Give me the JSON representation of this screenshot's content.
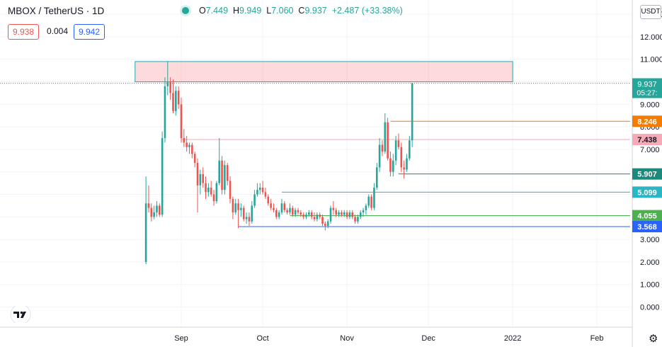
{
  "header": {
    "symbol": "MBOX / TetherUS · 1D",
    "open_label": "O",
    "open": "7.449",
    "high_label": "H",
    "high": "9.949",
    "low_label": "L",
    "low": "7.060",
    "close_label": "C",
    "close": "9.937",
    "change": "+2.487 (+33.38%)",
    "bid": "9.938",
    "spread": "0.004",
    "ask": "9.942",
    "currency": "USDT"
  },
  "colors": {
    "up": "#26a69a",
    "down": "#ef5350",
    "grid": "#f0f3fa"
  },
  "chart_data": {
    "type": "candlestick",
    "y_axis": {
      "ticks": [
        "0.000",
        "1.000",
        "2.000",
        "3.000",
        "4.000",
        "5.000",
        "6.000",
        "7.000",
        "8.000",
        "9.000",
        "10.000",
        "11.000",
        "12.000",
        "13.000"
      ],
      "ylim": [
        -0.4,
        13.4
      ]
    },
    "x_axis": {
      "ticks": [
        "Sep",
        "Oct",
        "Nov",
        "Dec",
        "2022",
        "Feb"
      ]
    },
    "last_price": {
      "value": 9.937,
      "label": "9.937",
      "countdown": "05:27:"
    },
    "levels": [
      {
        "value": 8.246,
        "label": "8.246",
        "color": "#f57c00",
        "from": "2021-11-17"
      },
      {
        "value": 7.438,
        "label": "7.438",
        "color": "#f7a9b5",
        "from": "2021-09-01"
      },
      {
        "value": 5.907,
        "label": "5.907",
        "color": "#1b8a7c",
        "from": "2021-11-20"
      },
      {
        "value": 5.099,
        "label": "5.099",
        "color": "#2bb6c6",
        "from": "2021-10-08"
      },
      {
        "value": 4.055,
        "label": "4.055",
        "color": "#4caf50",
        "from": "2021-10-11"
      },
      {
        "value": 3.568,
        "label": "3.568",
        "color": "#2962ff",
        "from": "2021-09-22"
      }
    ],
    "zone": {
      "from": "2021-08-15",
      "to": "2022-01-01",
      "low": 10.0,
      "high": 10.9
    },
    "candles": [
      [
        "2021-08-19",
        2.0,
        5.8,
        1.9,
        4.6
      ],
      [
        "2021-08-20",
        4.6,
        5.4,
        4.2,
        4.4
      ],
      [
        "2021-08-21",
        4.4,
        4.6,
        3.8,
        4.0
      ],
      [
        "2021-08-22",
        4.0,
        4.5,
        3.9,
        4.2
      ],
      [
        "2021-08-23",
        4.2,
        4.7,
        4.0,
        4.5
      ],
      [
        "2021-08-24",
        4.5,
        4.6,
        4.0,
        4.1
      ],
      [
        "2021-08-25",
        4.1,
        7.8,
        4.0,
        7.5
      ],
      [
        "2021-08-26",
        7.5,
        10.2,
        7.3,
        9.8
      ],
      [
        "2021-08-27",
        9.8,
        10.9,
        9.4,
        10.0
      ],
      [
        "2021-08-28",
        10.0,
        10.2,
        9.2,
        9.5
      ],
      [
        "2021-08-29",
        9.5,
        10.1,
        8.6,
        8.7
      ],
      [
        "2021-08-30",
        8.7,
        9.8,
        8.5,
        9.6
      ],
      [
        "2021-08-31",
        9.6,
        9.8,
        8.8,
        9.0
      ],
      [
        "2021-09-01",
        9.0,
        9.3,
        7.3,
        7.5
      ],
      [
        "2021-09-02",
        7.5,
        7.9,
        7.1,
        7.3
      ],
      [
        "2021-09-03",
        7.3,
        7.6,
        6.9,
        7.1
      ],
      [
        "2021-09-04",
        7.1,
        7.3,
        6.8,
        7.2
      ],
      [
        "2021-09-05",
        7.2,
        7.3,
        6.6,
        6.8
      ],
      [
        "2021-09-06",
        6.8,
        6.9,
        6.2,
        6.4
      ],
      [
        "2021-09-07",
        6.4,
        6.6,
        4.2,
        5.4
      ],
      [
        "2021-09-08",
        5.4,
        6.1,
        5.0,
        5.9
      ],
      [
        "2021-09-09",
        5.9,
        6.2,
        5.3,
        5.5
      ],
      [
        "2021-09-10",
        5.5,
        5.8,
        4.8,
        5.1
      ],
      [
        "2021-09-11",
        5.1,
        5.5,
        4.9,
        5.3
      ],
      [
        "2021-09-12",
        5.3,
        5.6,
        4.9,
        5.0
      ],
      [
        "2021-09-13",
        5.0,
        5.2,
        4.5,
        4.7
      ],
      [
        "2021-09-14",
        4.7,
        5.6,
        4.6,
        5.5
      ],
      [
        "2021-09-15",
        5.5,
        7.5,
        5.4,
        6.5
      ],
      [
        "2021-09-16",
        6.5,
        6.7,
        5.0,
        5.2
      ],
      [
        "2021-09-17",
        5.2,
        6.5,
        5.0,
        6.3
      ],
      [
        "2021-09-18",
        6.3,
        6.4,
        5.4,
        5.6
      ],
      [
        "2021-09-19",
        5.6,
        5.8,
        4.6,
        4.8
      ],
      [
        "2021-09-20",
        4.8,
        4.9,
        3.9,
        4.2
      ],
      [
        "2021-09-21",
        4.2,
        4.8,
        4.1,
        4.6
      ],
      [
        "2021-09-22",
        4.6,
        4.8,
        3.5,
        4.3
      ],
      [
        "2021-09-23",
        4.3,
        4.6,
        4.0,
        4.4
      ],
      [
        "2021-09-24",
        4.4,
        4.5,
        3.8,
        3.9
      ],
      [
        "2021-09-25",
        3.9,
        4.2,
        3.7,
        4.0
      ],
      [
        "2021-09-26",
        4.0,
        4.2,
        3.6,
        3.8
      ],
      [
        "2021-09-27",
        3.8,
        4.7,
        3.7,
        4.5
      ],
      [
        "2021-09-28",
        4.5,
        5.2,
        4.4,
        5.0
      ],
      [
        "2021-09-29",
        5.0,
        5.5,
        4.9,
        5.2
      ],
      [
        "2021-09-30",
        5.2,
        5.5,
        5.0,
        5.3
      ],
      [
        "2021-10-01",
        5.3,
        5.6,
        5.0,
        5.1
      ],
      [
        "2021-10-02",
        5.1,
        5.3,
        4.8,
        4.9
      ],
      [
        "2021-10-03",
        4.9,
        5.0,
        4.5,
        4.6
      ],
      [
        "2021-10-04",
        4.6,
        4.8,
        4.3,
        4.4
      ],
      [
        "2021-10-05",
        4.4,
        4.6,
        4.2,
        4.3
      ],
      [
        "2021-10-06",
        4.3,
        4.4,
        3.9,
        4.0
      ],
      [
        "2021-10-07",
        4.0,
        4.3,
        3.9,
        4.2
      ],
      [
        "2021-10-08",
        4.2,
        4.8,
        4.1,
        4.6
      ],
      [
        "2021-10-09",
        4.6,
        4.7,
        4.2,
        4.3
      ],
      [
        "2021-10-10",
        4.3,
        4.4,
        4.1,
        4.2
      ],
      [
        "2021-10-11",
        4.2,
        4.6,
        4.1,
        4.4
      ],
      [
        "2021-10-12",
        4.4,
        4.5,
        4.0,
        4.1
      ],
      [
        "2021-10-13",
        4.1,
        4.4,
        4.0,
        4.3
      ],
      [
        "2021-10-14",
        4.3,
        4.4,
        4.1,
        4.2
      ],
      [
        "2021-10-15",
        4.2,
        4.3,
        4.0,
        4.1
      ],
      [
        "2021-10-16",
        4.1,
        4.2,
        3.9,
        4.0
      ],
      [
        "2021-10-17",
        4.0,
        4.2,
        3.9,
        4.1
      ],
      [
        "2021-10-18",
        4.1,
        4.3,
        4.0,
        4.2
      ],
      [
        "2021-10-19",
        4.2,
        4.3,
        3.9,
        4.0
      ],
      [
        "2021-10-20",
        4.0,
        4.2,
        3.8,
        3.9
      ],
      [
        "2021-10-21",
        3.9,
        4.2,
        3.8,
        4.1
      ],
      [
        "2021-10-22",
        4.1,
        4.2,
        3.9,
        4.0
      ],
      [
        "2021-10-23",
        4.0,
        4.1,
        3.6,
        3.7
      ],
      [
        "2021-10-24",
        3.7,
        3.8,
        3.4,
        3.6
      ],
      [
        "2021-10-25",
        3.6,
        3.9,
        3.5,
        3.8
      ],
      [
        "2021-10-26",
        3.8,
        4.5,
        3.7,
        4.4
      ],
      [
        "2021-10-27",
        4.4,
        4.7,
        4.1,
        4.3
      ],
      [
        "2021-10-28",
        4.3,
        4.4,
        4.0,
        4.1
      ],
      [
        "2021-10-29",
        4.1,
        4.3,
        4.0,
        4.2
      ],
      [
        "2021-10-30",
        4.2,
        4.3,
        4.0,
        4.1
      ],
      [
        "2021-10-31",
        4.1,
        4.3,
        4.0,
        4.2
      ],
      [
        "2021-11-01",
        4.2,
        4.3,
        3.9,
        4.0
      ],
      [
        "2021-11-02",
        4.0,
        4.3,
        3.9,
        4.2
      ],
      [
        "2021-11-03",
        4.2,
        4.3,
        3.9,
        4.0
      ],
      [
        "2021-11-04",
        4.0,
        4.1,
        3.7,
        3.8
      ],
      [
        "2021-11-05",
        3.8,
        4.1,
        3.7,
        4.0
      ],
      [
        "2021-11-06",
        4.0,
        4.3,
        3.9,
        4.2
      ],
      [
        "2021-11-07",
        4.2,
        4.4,
        4.0,
        4.3
      ],
      [
        "2021-11-08",
        4.3,
        4.6,
        4.1,
        4.5
      ],
      [
        "2021-11-09",
        4.5,
        5.0,
        4.4,
        4.9
      ],
      [
        "2021-11-10",
        4.9,
        5.0,
        4.3,
        4.4
      ],
      [
        "2021-11-11",
        4.4,
        5.5,
        4.3,
        5.3
      ],
      [
        "2021-11-12",
        5.3,
        6.4,
        5.2,
        6.2
      ],
      [
        "2021-11-13",
        6.2,
        7.5,
        6.0,
        7.2
      ],
      [
        "2021-11-14",
        7.2,
        7.4,
        6.7,
        6.9
      ],
      [
        "2021-11-15",
        6.9,
        8.6,
        6.8,
        8.2
      ],
      [
        "2021-11-16",
        8.2,
        8.4,
        6.5,
        6.6
      ],
      [
        "2021-11-17",
        6.6,
        6.9,
        5.8,
        6.0
      ],
      [
        "2021-11-18",
        6.0,
        6.8,
        5.8,
        6.5
      ],
      [
        "2021-11-19",
        6.5,
        7.6,
        6.3,
        7.4
      ],
      [
        "2021-11-20",
        7.4,
        7.7,
        7.0,
        7.1
      ],
      [
        "2021-11-21",
        7.1,
        7.3,
        6.0,
        6.2
      ],
      [
        "2021-11-22",
        6.2,
        6.5,
        5.7,
        6.1
      ],
      [
        "2021-11-23",
        6.1,
        6.8,
        6.0,
        6.6
      ],
      [
        "2021-11-24",
        6.6,
        7.6,
        6.5,
        7.4
      ],
      [
        "2021-11-25",
        7.4,
        9.95,
        7.1,
        9.937
      ]
    ]
  }
}
